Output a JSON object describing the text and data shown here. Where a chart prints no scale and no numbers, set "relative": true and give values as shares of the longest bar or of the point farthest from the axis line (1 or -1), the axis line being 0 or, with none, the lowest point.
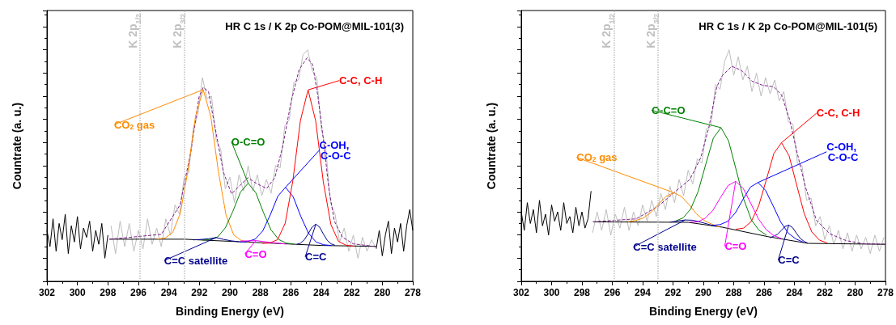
{
  "chart_data": [
    {
      "type": "line",
      "title": "HR C 1s / K 2p Co-POM@MIL-101(3)",
      "xlabel": "Binding Energy (eV)",
      "ylabel": "Countrate (a. u.)",
      "relative": true,
      "tick_labels": "x",
      "marker": "none",
      "xlim": [
        302,
        278
      ],
      "xticks": [
        302,
        300,
        298,
        296,
        294,
        292,
        290,
        288,
        286,
        284,
        282,
        280,
        278
      ],
      "ref_lines": [
        {
          "axis": "x",
          "value": 295.9,
          "label": "K 2p$_{1/2}$",
          "color": "#c0c0c0",
          "line_style": "dotted"
        },
        {
          "axis": "x",
          "value": 293.0,
          "label": "K 2p$_{3/2}$",
          "color": "#c0c0c0",
          "line_style": "dotted"
        }
      ],
      "series": [
        {
          "color": "#000000",
          "x": [
            302,
            301.8,
            301.6,
            301.4,
            301.2,
            301,
            300.8,
            300.6,
            300.4,
            300.2,
            300,
            299.8,
            299.6,
            299.4,
            299.2,
            299,
            298.8,
            298.6,
            298.4,
            298.2,
            298
          ],
          "values": [
            0.22,
            0.15,
            0.27,
            0.13,
            0.25,
            0.18,
            0.29,
            0.12,
            0.24,
            0.17,
            0.28,
            0.14,
            0.23,
            0.19,
            0.26,
            0.13,
            0.22,
            0.16,
            0.25,
            0.1,
            0.2
          ]
        },
        {
          "color": "#000000",
          "x": [
            280.4,
            280.2,
            280,
            279.8,
            279.6,
            279.4,
            279.2,
            279,
            278.8,
            278.6,
            278.4,
            278.2,
            278
          ],
          "values": [
            0.14,
            0.22,
            0.11,
            0.2,
            0.26,
            0.12,
            0.23,
            0.17,
            0.25,
            0.13,
            0.24,
            0.31,
            0.22
          ]
        },
        {
          "color": "#bdbdbd",
          "x": [
            297.8,
            297.5,
            297.2,
            296.9,
            296.6,
            296.3,
            296,
            295.7,
            295.4,
            295.1,
            294.8,
            294.5,
            294.2,
            293.9,
            293.6,
            293.3,
            293,
            292.7,
            292.4,
            292.1,
            291.8,
            291.5,
            291.2,
            290.9,
            290.6,
            290.3,
            290,
            289.7,
            289.4,
            289.1,
            288.8,
            288.5,
            288.2,
            287.9,
            287.6,
            287.3,
            287,
            286.7,
            286.4,
            286.1,
            285.8,
            285.5,
            285.2,
            284.9,
            284.6,
            284.3,
            284,
            283.7,
            283.4,
            283.1,
            282.8,
            282.5,
            282.2,
            281.9,
            281.6,
            281.3,
            281,
            280.7,
            280.4
          ],
          "values": [
            0.24,
            0.12,
            0.26,
            0.15,
            0.25,
            0.13,
            0.22,
            0.14,
            0.27,
            0.16,
            0.23,
            0.15,
            0.27,
            0.2,
            0.33,
            0.29,
            0.45,
            0.47,
            0.66,
            0.72,
            0.88,
            0.79,
            0.8,
            0.61,
            0.57,
            0.4,
            0.45,
            0.34,
            0.46,
            0.39,
            0.5,
            0.39,
            0.46,
            0.37,
            0.44,
            0.38,
            0.5,
            0.49,
            0.67,
            0.7,
            0.86,
            0.87,
            0.98,
            1.0,
            0.91,
            0.88,
            0.66,
            0.57,
            0.34,
            0.29,
            0.17,
            0.23,
            0.13,
            0.2,
            0.1,
            0.19,
            0.13,
            0.18,
            0.14
          ]
        },
        {
          "color": "#000000",
          "x": [
            297.9,
            293,
            284,
            280.4
          ],
          "values": [
            0.182,
            0.182,
            0.155,
            0.151
          ]
        },
        {
          "name": "CO$_{2}$ gas",
          "color": "#ff8c00",
          "x": [
            294.75,
            294.25,
            293.75,
            293.25,
            292.75,
            292.25,
            291.75,
            291.25,
            290.75,
            290.25,
            289.75,
            289.25,
            288.75
          ],
          "values": [
            0.183,
            0.187,
            0.211,
            0.294,
            0.479,
            0.715,
            0.828,
            0.712,
            0.473,
            0.286,
            0.201,
            0.176,
            0.17
          ]
        },
        {
          "name": "O-C=O",
          "color": "#008000",
          "x": [
            291.8,
            291.3,
            290.8,
            290.3,
            289.8,
            289.3,
            288.8,
            288.3,
            287.8,
            287.3,
            286.8,
            286.3,
            285.8
          ],
          "values": [
            0.178,
            0.18,
            0.192,
            0.231,
            0.303,
            0.386,
            0.424,
            0.383,
            0.298,
            0.222,
            0.181,
            0.165,
            0.161
          ]
        },
        {
          "name": "C-OH, C-O-C",
          "color": "#0000ff",
          "x": [
            289.35,
            288.85,
            288.35,
            287.85,
            287.35,
            286.85,
            286.35,
            285.85,
            285.35,
            284.85,
            284.35,
            283.85,
            283.35
          ],
          "values": [
            0.17,
            0.172,
            0.182,
            0.217,
            0.287,
            0.368,
            0.406,
            0.366,
            0.281,
            0.209,
            0.17,
            0.158,
            0.155
          ]
        },
        {
          "name": "C-C, C-H",
          "color": "#ff0000",
          "x": [
            287.87,
            287.37,
            286.87,
            286.37,
            285.87,
            285.37,
            284.87,
            284.37,
            283.87,
            283.37,
            282.87,
            282.37,
            281.87
          ],
          "values": [
            0.164,
            0.166,
            0.18,
            0.251,
            0.434,
            0.695,
            0.827,
            0.693,
            0.43,
            0.245,
            0.172,
            0.156,
            0.152
          ]
        },
        {
          "name": "C=C",
          "color": "#00008b",
          "x": [
            285.61,
            285.36,
            285.11,
            284.86,
            284.61,
            284.36,
            284.11,
            283.86,
            283.61,
            283.36,
            283.11
          ],
          "values": [
            0.16,
            0.165,
            0.18,
            0.206,
            0.234,
            0.247,
            0.234,
            0.204,
            0.177,
            0.162,
            0.156
          ]
        },
        {
          "name": "C=C satellite",
          "color": "#00008b",
          "x": [
            292.4,
            291.9,
            291.4,
            290.9,
            290.4,
            289.9,
            289.4
          ],
          "values": [
            0.179,
            0.181,
            0.184,
            0.189,
            0.181,
            0.175,
            0.171
          ]
        },
        {
          "name": "C=O",
          "color": "#ff00ff",
          "x": [
            289.3,
            288.3,
            287.3,
            286.3
          ],
          "values": [
            0.174,
            0.176,
            0.168,
            0.161
          ]
        },
        {
          "color": "#7b1f8a",
          "line_style": "dashed",
          "x": [
            297.9,
            294.5,
            293.26,
            292.55,
            292.02,
            291.75,
            291.4,
            290.95,
            290.42,
            289.89,
            289.36,
            288.82,
            288.29,
            287.59,
            287.05,
            286.52,
            285.99,
            285.46,
            284.93,
            284.57,
            284.22,
            283.86,
            283.51,
            283.15,
            282.62,
            281.91,
            280.4
          ],
          "values": [
            0.182,
            0.203,
            0.331,
            0.564,
            0.797,
            0.838,
            0.82,
            0.657,
            0.471,
            0.378,
            0.413,
            0.448,
            0.424,
            0.401,
            0.448,
            0.587,
            0.774,
            0.914,
            0.966,
            0.937,
            0.797,
            0.611,
            0.401,
            0.261,
            0.191,
            0.162,
            0.15
          ]
        }
      ]
    },
    {
      "type": "line",
      "title": "HR C 1s / K 2p Co-POM@MIL-101(5)",
      "xlabel": "Binding Energy (eV)",
      "ylabel": "Countrate (a. u.)",
      "relative": true,
      "tick_labels": "x",
      "marker": "none",
      "xlim": [
        302,
        278
      ],
      "xticks": [
        302,
        300,
        298,
        296,
        294,
        292,
        290,
        288,
        286,
        284,
        282,
        280,
        278
      ],
      "ref_lines": [
        {
          "axis": "x",
          "value": 295.9,
          "label": "K 2p$_{1/2}$",
          "color": "#c0c0c0",
          "line_style": "dotted"
        },
        {
          "axis": "x",
          "value": 293.0,
          "label": "K 2p$_{3/2}$",
          "color": "#c0c0c0",
          "line_style": "dotted"
        }
      ],
      "series": [
        {
          "color": "#000000",
          "x": [
            302,
            301.8,
            301.6,
            301.4,
            301.2,
            301,
            300.8,
            300.6,
            300.4,
            300.2,
            300,
            299.8,
            299.6,
            299.4,
            299.2,
            299,
            298.8,
            298.6,
            298.4,
            298.2,
            298,
            297.8,
            297.6,
            297.4
          ],
          "values": [
            0.3,
            0.22,
            0.34,
            0.25,
            0.31,
            0.21,
            0.35,
            0.24,
            0.29,
            0.2,
            0.33,
            0.26,
            0.3,
            0.22,
            0.34,
            0.25,
            0.28,
            0.21,
            0.32,
            0.24,
            0.3,
            0.23,
            0.27,
            0.39
          ]
        },
        {
          "color": "#bdbdbd",
          "x": [
            297.3,
            297,
            296.7,
            296.4,
            296.1,
            295.8,
            295.5,
            295.2,
            294.9,
            294.6,
            294.3,
            294,
            293.7,
            293.4,
            293.1,
            292.8,
            292.5,
            292.2,
            291.9,
            291.6,
            291.3,
            291,
            290.7,
            290.4,
            290.1,
            289.8,
            289.5,
            289.2,
            288.9,
            288.6,
            288.3,
            288,
            287.7,
            287.4,
            287.1,
            286.8,
            286.5,
            286.2,
            285.9,
            285.6,
            285.3,
            285,
            284.7,
            284.4,
            284.1,
            283.8,
            283.5,
            283.2,
            282.9,
            282.6,
            282.3,
            282,
            281.7,
            281.4,
            281.1,
            280.8,
            280.5,
            280.2,
            279.9,
            279.6,
            279.3,
            279,
            278.7,
            278.4,
            278.1
          ],
          "values": [
            0.21,
            0.3,
            0.22,
            0.31,
            0.2,
            0.29,
            0.23,
            0.32,
            0.22,
            0.3,
            0.24,
            0.33,
            0.26,
            0.35,
            0.28,
            0.38,
            0.31,
            0.41,
            0.34,
            0.44,
            0.37,
            0.48,
            0.42,
            0.53,
            0.51,
            0.66,
            0.67,
            0.85,
            0.83,
            0.95,
            1.0,
            0.89,
            0.97,
            0.87,
            0.93,
            0.82,
            0.9,
            0.8,
            0.88,
            0.81,
            0.87,
            0.78,
            0.82,
            0.69,
            0.68,
            0.51,
            0.5,
            0.35,
            0.36,
            0.24,
            0.28,
            0.18,
            0.24,
            0.16,
            0.22,
            0.14,
            0.21,
            0.13,
            0.2,
            0.14,
            0.19,
            0.12,
            0.2,
            0.13,
            0.19
          ]
        },
        {
          "color": "#000000",
          "x": [
            297.27,
            291,
            288.76,
            285.74,
            283.1,
            278
          ],
          "values": [
            0.257,
            0.255,
            0.234,
            0.193,
            0.164,
            0.16
          ]
        },
        {
          "name": "CO$_{2}$ gas",
          "color": "#ff8c00",
          "x": [
            294.95,
            294.45,
            293.95,
            293.45,
            292.95,
            292.45,
            291.95,
            291.45,
            290.95,
            290.45,
            289.95,
            289.45,
            288.95
          ],
          "values": [
            0.258,
            0.263,
            0.274,
            0.298,
            0.334,
            0.368,
            0.383,
            0.367,
            0.332,
            0.291,
            0.263,
            0.247,
            0.235
          ]
        },
        {
          "name": "O-C=O",
          "color": "#008000",
          "x": [
            291.84,
            291.34,
            290.84,
            290.34,
            289.84,
            289.34,
            288.84,
            288.34,
            287.84,
            287.34,
            286.84,
            286.34,
            285.84
          ],
          "values": [
            0.26,
            0.274,
            0.312,
            0.389,
            0.506,
            0.619,
            0.664,
            0.607,
            0.482,
            0.355,
            0.266,
            0.221,
            0.2
          ]
        },
        {
          "name": "C-OH, C-O-C",
          "color": "#0000ff",
          "x": [
            289.4,
            288.9,
            288.4,
            287.9,
            287.4,
            286.9,
            286.4,
            285.9,
            285.4,
            284.9,
            284.4,
            283.9,
            283.4
          ],
          "values": [
            0.242,
            0.245,
            0.259,
            0.295,
            0.353,
            0.407,
            0.427,
            0.393,
            0.326,
            0.256,
            0.208,
            0.183,
            0.169
          ]
        },
        {
          "name": "C-C, C-H",
          "color": "#ff0000",
          "x": [
            287.85,
            287.35,
            286.85,
            286.35,
            285.85,
            285.35,
            284.85,
            284.35,
            283.85,
            283.35,
            282.85,
            282.35,
            281.85
          ],
          "values": [
            0.225,
            0.23,
            0.258,
            0.327,
            0.439,
            0.553,
            0.599,
            0.542,
            0.416,
            0.292,
            0.213,
            0.178,
            0.166
          ]
        },
        {
          "name": "C=C",
          "color": "#00008b",
          "x": [
            285.62,
            285.37,
            285.12,
            284.87,
            284.62,
            284.37,
            284.12,
            283.87,
            283.62,
            283.37,
            283.12
          ],
          "values": [
            0.188,
            0.195,
            0.203,
            0.219,
            0.237,
            0.243,
            0.232,
            0.208,
            0.186,
            0.173,
            0.165
          ]
        },
        {
          "name": "C=C satellite",
          "color": "#00008b",
          "x": [
            292.2,
            291.7,
            291.2,
            290.7,
            290.2,
            289.7,
            289.2
          ],
          "values": [
            0.256,
            0.261,
            0.265,
            0.264,
            0.256,
            0.247,
            0.238
          ]
        },
        {
          "name": "C=O",
          "color": "#ff00ff",
          "x": [
            290.87,
            290.37,
            289.87,
            289.37,
            288.87,
            288.37,
            287.87,
            287.37,
            286.87,
            286.37,
            285.87,
            285.37,
            284.87
          ],
          "values": [
            0.256,
            0.257,
            0.273,
            0.307,
            0.362,
            0.414,
            0.432,
            0.401,
            0.336,
            0.27,
            0.224,
            0.198,
            0.185
          ]
        },
        {
          "color": "#7b1f8a",
          "line_style": "dashed",
          "x": [
            297.27,
            294.43,
            293.01,
            291.95,
            290.88,
            290.17,
            289.64,
            289.11,
            288.76,
            288.13,
            287.51,
            286.8,
            286.1,
            285.38,
            284.85,
            284.32,
            283.79,
            283.26,
            282.55,
            281.66,
            280.6,
            279.5,
            278
          ],
          "values": [
            0.257,
            0.27,
            0.323,
            0.382,
            0.441,
            0.535,
            0.664,
            0.841,
            0.888,
            0.929,
            0.912,
            0.865,
            0.847,
            0.841,
            0.806,
            0.7,
            0.547,
            0.405,
            0.264,
            0.205,
            0.176,
            0.163,
            0.16
          ]
        }
      ]
    }
  ]
}
